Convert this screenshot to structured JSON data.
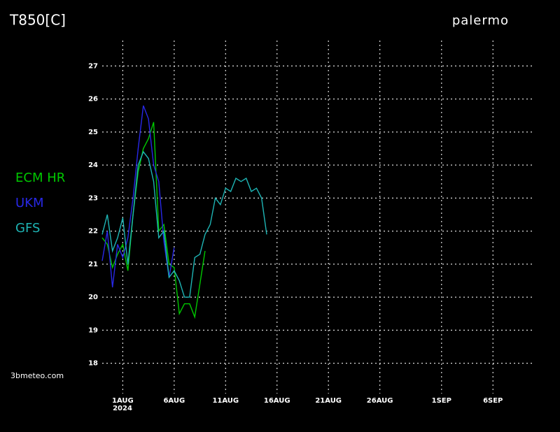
{
  "chart_data": {
    "type": "line",
    "title": "T850[C]",
    "subtitle": "palermo",
    "source": "3bmeteo.com",
    "year_label": "2024",
    "x": [
      -1,
      -0.5,
      0,
      0.5,
      1,
      1.5,
      2,
      2.5,
      3,
      3.5,
      4,
      4.5,
      5,
      5.5,
      6,
      6.5,
      7,
      7.5,
      8,
      8.5,
      9,
      9.5,
      10,
      10.5,
      11,
      11.5,
      12,
      12.5,
      13,
      13.5,
      14,
      14.5,
      15
    ],
    "xlim": [
      -1,
      41
    ],
    "xticks": [
      {
        "value": 1,
        "label": "1AUG"
      },
      {
        "value": 6,
        "label": "6AUG"
      },
      {
        "value": 11,
        "label": "11AUG"
      },
      {
        "value": 16,
        "label": "16AUG"
      },
      {
        "value": 21,
        "label": "21AUG"
      },
      {
        "value": 26,
        "label": "26AUG"
      },
      {
        "value": 32,
        "label": "1SEP"
      },
      {
        "value": 37,
        "label": "6SEP"
      }
    ],
    "ylim": [
      17.4,
      27.6
    ],
    "yticks": [
      18,
      19,
      20,
      21,
      22,
      23,
      24,
      25,
      26,
      27
    ],
    "grid": true,
    "series": [
      {
        "name": "ECM HR",
        "color": "#00c800",
        "values": [
          21.8,
          21.6,
          20.9,
          21.3,
          21.6,
          20.8,
          22.5,
          23.8,
          24.5,
          24.8,
          25.3,
          22.0,
          22.2,
          21.0,
          20.9,
          19.5,
          19.8,
          19.8,
          19.4,
          20.4,
          21.4,
          null,
          null,
          null,
          null,
          null,
          null,
          null,
          null,
          null,
          null,
          null,
          null
        ]
      },
      {
        "name": "UKM",
        "color": "#2828e6",
        "values": [
          21.1,
          22.0,
          20.3,
          21.6,
          21.2,
          21.8,
          23.0,
          24.5,
          25.8,
          25.4,
          24.0,
          23.5,
          21.7,
          20.6,
          21.5,
          null,
          null,
          null,
          null,
          null,
          null,
          null,
          null,
          null,
          null,
          null,
          null,
          null,
          null,
          null,
          null,
          null,
          null
        ]
      },
      {
        "name": "GFS",
        "color": "#1eb4b4",
        "values": [
          21.9,
          22.5,
          21.4,
          21.8,
          22.4,
          21.0,
          22.5,
          24.0,
          24.4,
          24.2,
          23.5,
          21.8,
          22.0,
          20.6,
          20.8,
          20.5,
          20.0,
          20.0,
          21.2,
          21.3,
          21.9,
          22.2,
          23.0,
          22.8,
          23.3,
          23.2,
          23.6,
          23.5,
          23.6,
          23.2,
          23.3,
          23.0,
          21.9
        ]
      }
    ]
  }
}
